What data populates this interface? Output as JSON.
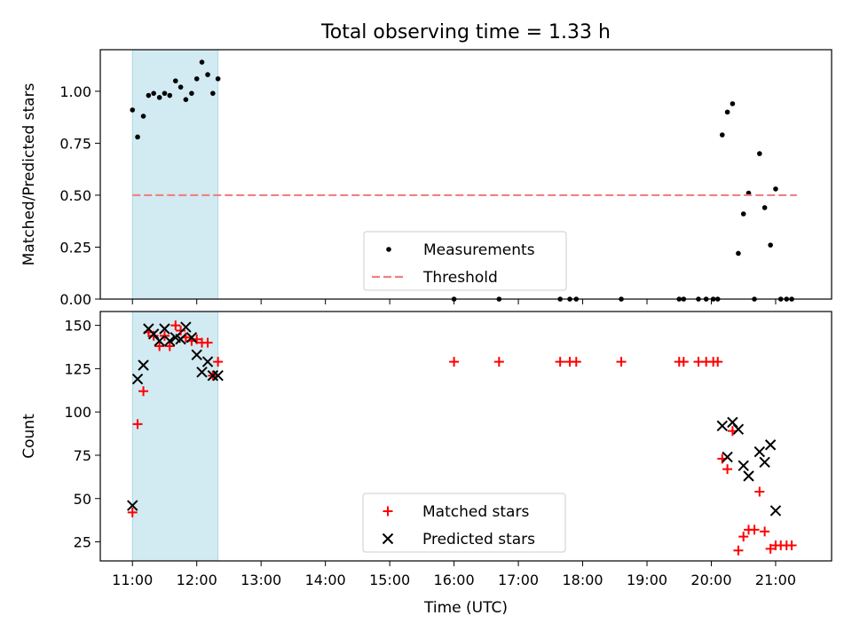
{
  "title": "Total observing time = 1.33 h",
  "colors": {
    "measurement": "#000000",
    "threshold": "#f08080",
    "matched": "#ff0000",
    "predicted": "#000000",
    "window": "#add8e6"
  },
  "chart_data": [
    {
      "type": "scatter",
      "ylabel": "Matched/Predicted stars",
      "xlim": [
        10.5,
        21.87
      ],
      "ylim": [
        0,
        1.2
      ],
      "yticks": [
        0,
        0.25,
        0.5,
        0.75,
        1.0
      ],
      "ytick_labels": [
        "0.00",
        "0.25",
        "0.50",
        "0.75",
        "1.00"
      ],
      "shaded_window": [
        11.0,
        12.33
      ],
      "legend_position": "lower center",
      "series": [
        {
          "name": "Measurements",
          "marker": "dot",
          "x": [
            11.0,
            11.08,
            11.17,
            11.25,
            11.33,
            11.42,
            11.5,
            11.58,
            11.67,
            11.75,
            11.83,
            11.92,
            12.0,
            12.08,
            12.17,
            12.25,
            12.33,
            16.0,
            16.7,
            17.65,
            17.8,
            17.9,
            18.6,
            19.5,
            19.57,
            19.8,
            19.92,
            20.03,
            20.1,
            20.17,
            20.25,
            20.33,
            20.42,
            20.5,
            20.58,
            20.67,
            20.75,
            20.83,
            20.92,
            21.0,
            21.08,
            21.17,
            21.25
          ],
          "y": [
            0.91,
            0.78,
            0.88,
            0.98,
            0.99,
            0.97,
            0.99,
            0.98,
            1.05,
            1.02,
            0.96,
            0.99,
            1.06,
            1.14,
            1.08,
            0.99,
            1.06,
            0.0,
            0.0,
            0.0,
            0.0,
            0.0,
            0.0,
            0.0,
            0.0,
            0.0,
            0.0,
            0.0,
            0.0,
            0.79,
            0.9,
            0.94,
            0.22,
            0.41,
            0.51,
            0.0,
            0.7,
            0.44,
            0.26,
            0.53,
            0.0,
            0.0,
            0.0
          ]
        },
        {
          "name": "Threshold",
          "marker": "dashed-line",
          "x": [
            11.0,
            21.33
          ],
          "y": [
            0.5,
            0.5
          ]
        }
      ]
    },
    {
      "type": "scatter",
      "xlabel": "Time (UTC)",
      "ylabel": "Count",
      "xlim": [
        10.5,
        21.87
      ],
      "ylim": [
        14,
        158
      ],
      "xticks": [
        11,
        12,
        13,
        14,
        15,
        16,
        17,
        18,
        19,
        20,
        21
      ],
      "xtick_labels": [
        "11:00",
        "12:00",
        "13:00",
        "14:00",
        "15:00",
        "16:00",
        "17:00",
        "18:00",
        "19:00",
        "20:00",
        "21:00"
      ],
      "yticks": [
        25,
        50,
        75,
        100,
        125,
        150
      ],
      "ytick_labels": [
        "25",
        "50",
        "75",
        "100",
        "125",
        "150"
      ],
      "shaded_window": [
        11.0,
        12.33
      ],
      "legend_position": "lower center",
      "series": [
        {
          "name": "Matched stars",
          "marker": "plus",
          "x": [
            11.0,
            11.08,
            11.17,
            11.25,
            11.33,
            11.42,
            11.5,
            11.58,
            11.67,
            11.75,
            11.83,
            11.92,
            12.0,
            12.08,
            12.17,
            12.25,
            12.33,
            16.0,
            16.7,
            17.65,
            17.8,
            17.9,
            18.6,
            19.5,
            19.57,
            19.8,
            19.92,
            20.03,
            20.1,
            20.17,
            20.25,
            20.33,
            20.42,
            20.5,
            20.58,
            20.67,
            20.75,
            20.83,
            20.92,
            21.0,
            21.08,
            21.17,
            21.25
          ],
          "y": [
            42,
            93,
            112,
            146,
            144,
            138,
            144,
            138,
            150,
            147,
            143,
            141,
            142,
            140,
            140,
            121,
            129,
            129,
            129,
            129,
            129,
            129,
            129,
            129,
            129,
            129,
            129,
            129,
            129,
            73,
            67,
            89,
            20,
            28,
            32,
            32,
            54,
            31,
            21,
            23,
            23,
            23,
            23
          ]
        },
        {
          "name": "Predicted stars",
          "marker": "x",
          "x": [
            11.0,
            11.08,
            11.17,
            11.25,
            11.33,
            11.42,
            11.5,
            11.58,
            11.67,
            11.75,
            11.83,
            11.92,
            12.0,
            12.08,
            12.17,
            12.25,
            12.33,
            20.17,
            20.25,
            20.33,
            20.42,
            20.5,
            20.58,
            20.75,
            20.83,
            20.92,
            21.0
          ],
          "y": [
            46,
            119,
            127,
            148,
            145,
            141,
            148,
            141,
            143,
            142,
            149,
            143,
            133,
            123,
            129,
            121,
            121,
            92,
            74,
            94,
            90,
            69,
            63,
            77,
            71,
            81,
            43
          ]
        }
      ]
    }
  ]
}
